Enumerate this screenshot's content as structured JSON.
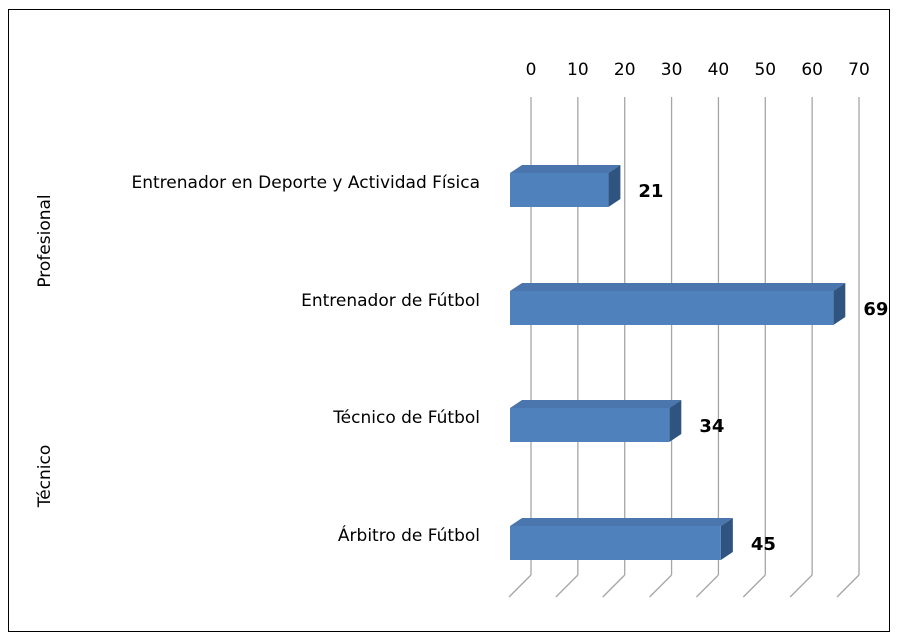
{
  "chart_data": {
    "type": "bar",
    "orientation": "horizontal",
    "color": "#4f81bd",
    "groups": [
      {
        "name": "Profesional",
        "categories": [
          "Entrenador en Deporte y Actividad Física",
          "Entrenador de Fútbol"
        ],
        "values": [
          21,
          69
        ]
      },
      {
        "name": "Técnico",
        "categories": [
          "Técnico de Fútbol",
          "Árbitro de Fútbol"
        ],
        "values": [
          34,
          45
        ]
      }
    ],
    "xlim": [
      0,
      70
    ],
    "xticks": [
      0,
      10,
      20,
      30,
      40,
      50,
      60,
      70
    ],
    "grid": true
  }
}
